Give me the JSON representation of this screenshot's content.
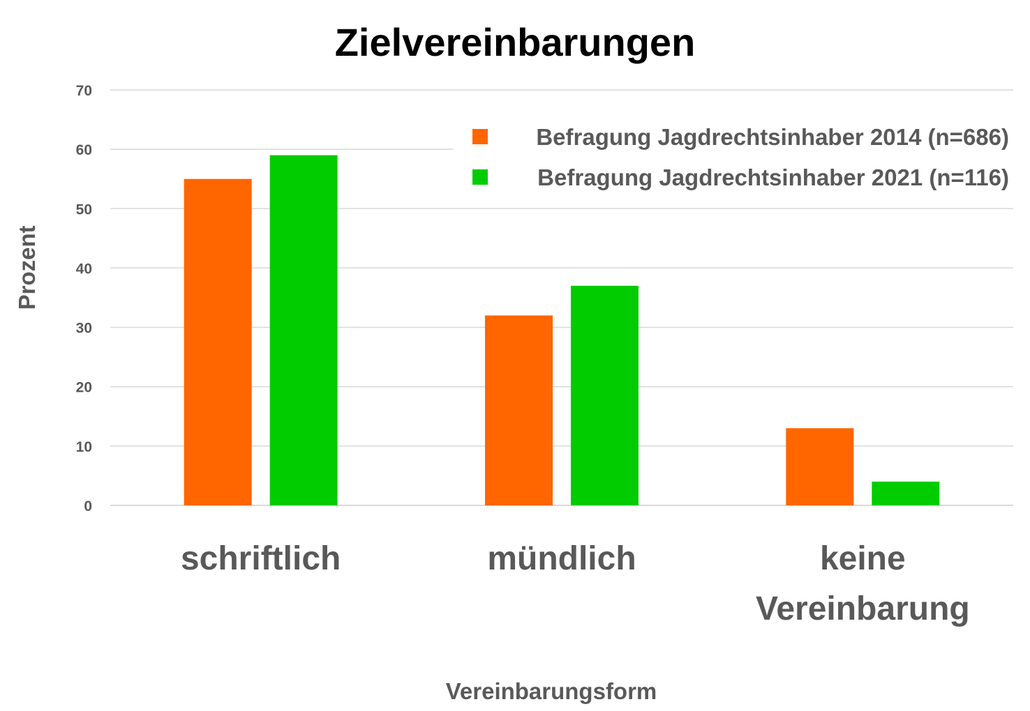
{
  "chart_data": {
    "type": "bar",
    "title": "Zielvereinbarungen",
    "xlabel": "Vereinbarungsform",
    "ylabel": "Prozent",
    "ylim": [
      0,
      70
    ],
    "yticks": [
      0,
      10,
      20,
      30,
      40,
      50,
      60,
      70
    ],
    "categories": [
      [
        "schriftlich"
      ],
      [
        "mündlich"
      ],
      [
        "keine",
        "Vereinbarung"
      ]
    ],
    "series": [
      {
        "name": "Befragung Jagdrechtsinhaber 2014 (n=686)",
        "color": "#ff6600",
        "values": [
          55,
          32,
          13
        ]
      },
      {
        "name": "Befragung Jagdrechtsinhaber 2021 (n=116)",
        "color": "#00cc00",
        "values": [
          59,
          37,
          4
        ]
      }
    ],
    "grid": true,
    "legend_position": "top-right"
  }
}
